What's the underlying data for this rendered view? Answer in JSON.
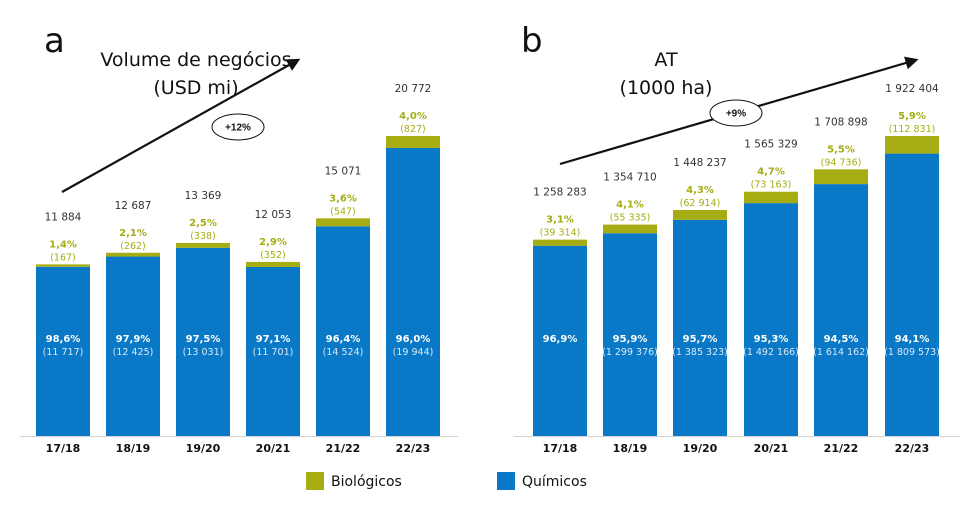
{
  "colors": {
    "bio": "#a5ad12",
    "chem": "#0878c7"
  },
  "legend": [
    {
      "name": "Biológicos",
      "color": "#a5ad12"
    },
    {
      "name": "Químicos",
      "color": "#0878c7"
    }
  ],
  "chart_data": [
    {
      "type": "bar",
      "stacked": true,
      "panel": "a",
      "title_line1": "Volume de negócios",
      "title_line2": "(USD mi)",
      "trend_label": "+12%",
      "categories": [
        "17/18",
        "18/19",
        "19/20",
        "20/21",
        "21/22",
        "22/23"
      ],
      "totals": [
        "11 884",
        "12 687",
        "13 369",
        "12 053",
        "15 071",
        "20 772"
      ],
      "total_values": [
        11884,
        12687,
        13369,
        12053,
        15071,
        20772
      ],
      "bio_values": [
        167,
        262,
        338,
        352,
        547,
        827
      ],
      "bio_pct": [
        "1,4%",
        "2,1%",
        "2,5%",
        "2,9%",
        "3,6%",
        "4,0%"
      ],
      "bio_labels": [
        "(167)",
        "(262)",
        "(338)",
        "(352)",
        "(547)",
        "(827)"
      ],
      "chem_values": [
        11717,
        12425,
        13031,
        11701,
        14524,
        19944
      ],
      "chem_pct": [
        "98,6%",
        "97,9%",
        "97,5%",
        "97,1%",
        "96,4%",
        "96,0%"
      ],
      "chem_labels": [
        "(11 717)",
        "(12 425)",
        "(13 031)",
        "(11 701)",
        "(14 524)",
        "(19 944)"
      ],
      "ylim": [
        0,
        20772
      ]
    },
    {
      "type": "bar",
      "stacked": true,
      "panel": "b",
      "title_line1": "AT",
      "title_line2": "(1000 ha)",
      "trend_label": "+9%",
      "categories": [
        "17/18",
        "18/19",
        "19/20",
        "20/21",
        "21/22",
        "22/23"
      ],
      "totals": [
        "1 258 283",
        "1 354 710",
        "1 448 237",
        "1 565 329",
        "1 708 898",
        "1 922 404"
      ],
      "total_values": [
        1258283,
        1354710,
        1448237,
        1565329,
        1708898,
        1922404
      ],
      "bio_values": [
        39314,
        55335,
        62914,
        73163,
        94736,
        112831
      ],
      "bio_pct": [
        "3,1%",
        "4,1%",
        "4,3%",
        "4,7%",
        "5,5%",
        "5,9%"
      ],
      "bio_labels": [
        "(39 314)",
        "(55 335)",
        "(62 914)",
        "(73 163)",
        "(94 736)",
        "(112 831)"
      ],
      "chem_values": [
        1218969,
        1299376,
        1385323,
        1492166,
        1614162,
        1809573
      ],
      "chem_pct": [
        "96,9%",
        "95,9%",
        "95,7%",
        "95,3%",
        "94,5%",
        "94,1%"
      ],
      "chem_labels": [
        "",
        "(1 299 376)",
        "(1 385 323)",
        "(1 492 166)",
        "(1 614 162)",
        "(1 809 573)"
      ],
      "ylim": [
        0,
        1922404
      ]
    }
  ]
}
